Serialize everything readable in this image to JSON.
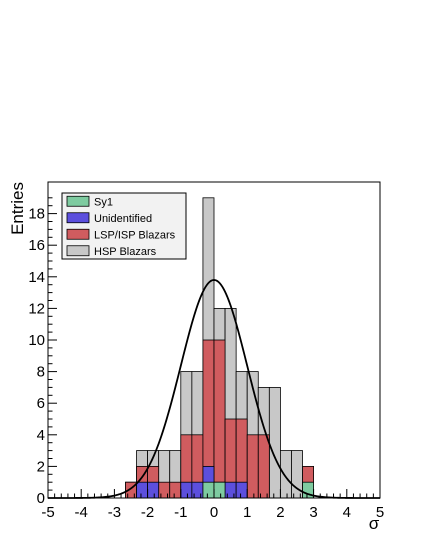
{
  "chart_data": {
    "type": "bar",
    "bar_mode": "overlay-stacked-histogram",
    "xlabel": "σ",
    "ylabel": "Entries",
    "xlim": [
      -5,
      5
    ],
    "ylim": [
      0,
      20
    ],
    "x_ticks": [
      -5,
      -4,
      -3,
      -2,
      -1,
      0,
      1,
      2,
      3,
      4,
      5
    ],
    "y_ticks": [
      0,
      2,
      4,
      6,
      8,
      10,
      12,
      14,
      16,
      18
    ],
    "bin_edges": [
      -5,
      -4.6667,
      -4.3333,
      -4,
      -3.6667,
      -3.3333,
      -3,
      -2.6667,
      -2.3333,
      -2,
      -1.6667,
      -1.3333,
      -1,
      -0.6667,
      -0.3333,
      0,
      0.3333,
      0.6667,
      1,
      1.3333,
      1.6667,
      2,
      2.3333,
      2.6667,
      3,
      3.3333,
      3.6667,
      4,
      4.3333,
      4.6667,
      5
    ],
    "series": [
      {
        "name": "HSP Blazars",
        "color": "#c8c8c8",
        "values": [
          0,
          0,
          0,
          0,
          0,
          0,
          0,
          1,
          3,
          3,
          3,
          3,
          8,
          8,
          19,
          12,
          12,
          8,
          8,
          7,
          7,
          3,
          3,
          1,
          0,
          0,
          0,
          0,
          0,
          0
        ]
      },
      {
        "name": "LSP/ISP Blazars",
        "color": "#d05c5f",
        "values": [
          0,
          0,
          0,
          0,
          0,
          0,
          0,
          1,
          2,
          2,
          1,
          1,
          4,
          4,
          10,
          10,
          5,
          5,
          4,
          4,
          0,
          0,
          0,
          2,
          0,
          0,
          0,
          0,
          0,
          0
        ]
      },
      {
        "name": "Unidentified",
        "color": "#5c4fdd",
        "values": [
          0,
          0,
          0,
          0,
          0,
          0,
          0,
          0,
          1,
          1,
          0,
          0,
          1,
          1,
          2,
          1,
          1,
          1,
          0,
          0,
          0,
          0,
          0,
          0,
          0,
          0,
          0,
          0,
          0,
          0
        ]
      },
      {
        "name": "Sy1",
        "color": "#7ecba0",
        "values": [
          0,
          0,
          0,
          0,
          0,
          0,
          0,
          0,
          0,
          0,
          0,
          0,
          0,
          0,
          1,
          1,
          0,
          0,
          0,
          0,
          0,
          0,
          0,
          1,
          0,
          0,
          0,
          0,
          0,
          0
        ]
      }
    ],
    "fit_curve": {
      "type": "gaussian",
      "amplitude": 13.8,
      "mean": 0.0,
      "sigma": 1.0
    },
    "legend": {
      "position": "top-left",
      "entries": [
        {
          "label": "Sy1",
          "color": "#7ecba0"
        },
        {
          "label": "Unidentified",
          "color": "#5c4fdd"
        },
        {
          "label": "LSP/ISP Blazars",
          "color": "#d05c5f"
        },
        {
          "label": "HSP Blazars",
          "color": "#c8c8c8"
        }
      ]
    }
  }
}
